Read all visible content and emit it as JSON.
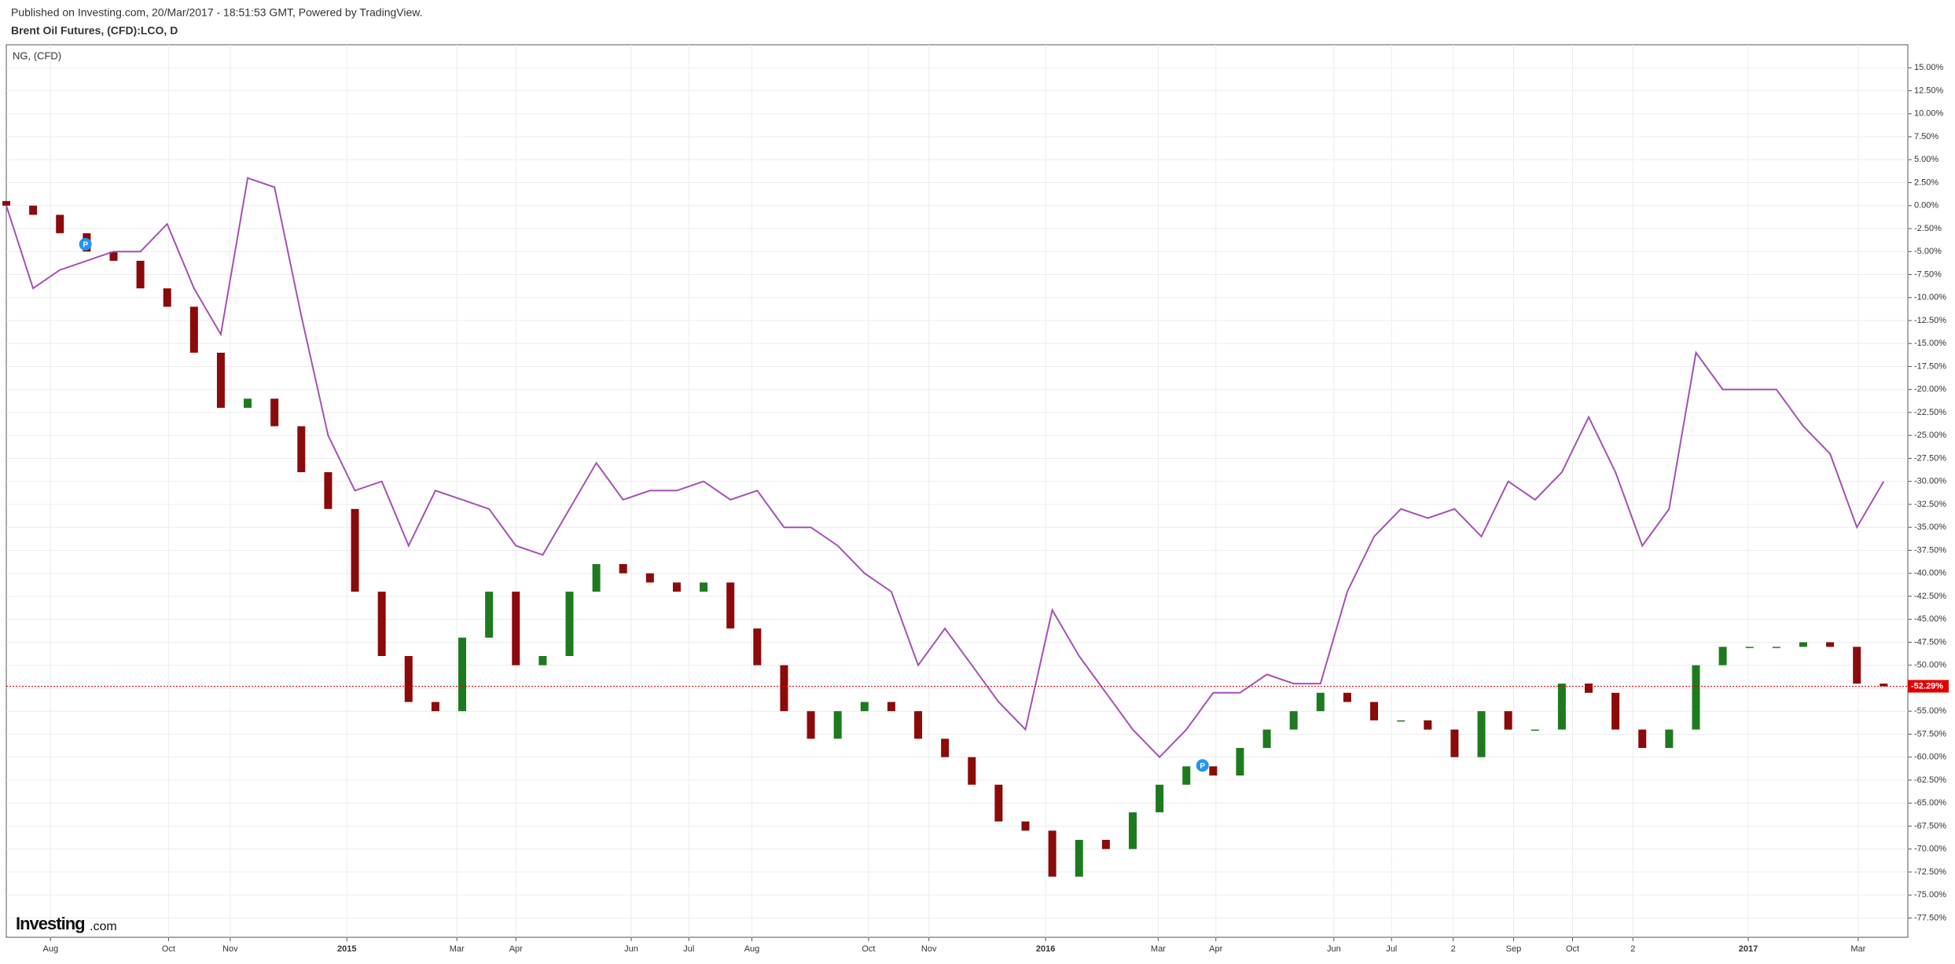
{
  "header": {
    "published": "Published on Investing.com, 20/Mar/2017 - 18:51:53 GMT, Powered by TradingView.",
    "logo": "Investing",
    "logo_suffix": ".com"
  },
  "chart_data": {
    "type": "candlestick",
    "title": "Brent Oil Futures, (CFD):LCO, D",
    "x": [
      0,
      2,
      4,
      6,
      8,
      10,
      12,
      14,
      16,
      18,
      20,
      22,
      24,
      26,
      28,
      30,
      32,
      34,
      36,
      38,
      40,
      42,
      44,
      46,
      48,
      50,
      52,
      54,
      56,
      58,
      60,
      62,
      64,
      66,
      68,
      70,
      72,
      74,
      76,
      78,
      80,
      82,
      84,
      86,
      88,
      90,
      92,
      94,
      96,
      98,
      100,
      102,
      104,
      106,
      108,
      110,
      112,
      114,
      116,
      118,
      120,
      122,
      124,
      126,
      128,
      130,
      132,
      134,
      136,
      138,
      140
    ],
    "series": [
      {
        "name": "Brent Oil Futures, (CFD):LCO, D",
        "up_color": "#1e7a1e",
        "down_color": "#8b0a0a",
        "open": [
          0.5,
          0,
          -1,
          -3,
          -5,
          -6,
          -9,
          -11,
          -16,
          -22,
          -21,
          -24,
          -29,
          -33,
          -42,
          -49,
          -54,
          -55,
          -47,
          -42,
          -50,
          -49,
          -42,
          -39,
          -40,
          -41,
          -42,
          -41,
          -46,
          -50,
          -55,
          -58,
          -55,
          -54,
          -55,
          -58,
          -60,
          -63,
          -67,
          -68,
          -73,
          -69,
          -70,
          -66,
          -63,
          -61,
          -62,
          -59,
          -57,
          -55,
          -53,
          -54,
          -56,
          -56,
          -57,
          -60,
          -55,
          -57,
          -57,
          -52,
          -53,
          -57,
          -59,
          -57,
          -50,
          -48,
          -48,
          -48,
          -47.5,
          -48,
          -52
        ],
        "values": [
          0,
          -1,
          -3,
          -5,
          -6,
          -9,
          -11,
          -16,
          -22,
          -21,
          -24,
          -29,
          -33,
          -42,
          -49,
          -54,
          -55,
          -47,
          -42,
          -50,
          -49,
          -42,
          -39,
          -40,
          -41,
          -42,
          -41,
          -46,
          -50,
          -55,
          -58,
          -55,
          -54,
          -55,
          -58,
          -60,
          -63,
          -67,
          -68,
          -73,
          -69,
          -70,
          -66,
          -63,
          -61,
          -62,
          -59,
          -57,
          -55,
          -53,
          -54,
          -56,
          -56,
          -57,
          -60,
          -55,
          -57,
          -57,
          -52,
          -53,
          -57,
          -59,
          -57,
          -50,
          -48,
          -48,
          -48,
          -47.5,
          -48,
          -52,
          -52.3
        ]
      },
      {
        "name": "NG,  (CFD)",
        "type": "line",
        "color": "#a550b4",
        "values": [
          0,
          -9,
          -7,
          -6,
          -5,
          -5,
          -2,
          -9,
          -14,
          3,
          2,
          -12,
          -25,
          -31,
          -30,
          -37,
          -31,
          -32,
          -33,
          -37,
          -38,
          -33,
          -28,
          -32,
          -31,
          -31,
          -30,
          -32,
          -31,
          -35,
          -35,
          -37,
          -40,
          -42,
          -50,
          -46,
          -50,
          -54,
          -57,
          -44,
          -49,
          -53,
          -57,
          -60,
          -57,
          -53,
          -53,
          -51,
          -52,
          -52,
          -42,
          -36,
          -33,
          -34,
          -33,
          -36,
          -30,
          -32,
          -29,
          -23,
          -29,
          -37,
          -33,
          -16,
          -20,
          -20,
          -20,
          -24,
          -27,
          -35,
          -30
        ]
      }
    ],
    "last_value": -52.29,
    "last_label": "-52.29%",
    "last_color": "#e00000",
    "annotations": [
      {
        "x": 5.9,
        "y": -4.2,
        "label": "P"
      },
      {
        "x": 89.2,
        "y": -60.9,
        "label": "P"
      }
    ],
    "xlim": [
      0,
      141.8
    ],
    "xticks": [
      {
        "value": 3.3,
        "label": "Aug"
      },
      {
        "value": 12.1,
        "label": "Oct"
      },
      {
        "value": 16.7,
        "label": "Nov"
      },
      {
        "value": 25.4,
        "label": "2015"
      },
      {
        "value": 33.6,
        "label": "Mar"
      },
      {
        "value": 38.0,
        "label": "Apr"
      },
      {
        "value": 46.6,
        "label": "Jun"
      },
      {
        "value": 50.9,
        "label": "Jul"
      },
      {
        "value": 55.6,
        "label": "Aug"
      },
      {
        "value": 64.3,
        "label": "Oct"
      },
      {
        "value": 68.8,
        "label": "Nov"
      },
      {
        "value": 77.5,
        "label": "2016"
      },
      {
        "value": 85.9,
        "label": "Mar"
      },
      {
        "value": 90.2,
        "label": "Apr"
      },
      {
        "value": 99.0,
        "label": "Jun"
      },
      {
        "value": 103.3,
        "label": "Jul"
      },
      {
        "value": 107.9,
        "label": "2"
      },
      {
        "value": 112.4,
        "label": "Sep"
      },
      {
        "value": 116.8,
        "label": "Oct"
      },
      {
        "value": 121.3,
        "label": "2"
      },
      {
        "value": 129.9,
        "label": "2017"
      },
      {
        "value": 138.1,
        "label": "Mar"
      }
    ],
    "ylim": [
      -79.6,
      17.5
    ],
    "yticks": [
      {
        "value": 15,
        "label": "15.00%"
      },
      {
        "value": 12.5,
        "label": "12.50%"
      },
      {
        "value": 10,
        "label": "10.00%"
      },
      {
        "value": 7.5,
        "label": "7.50%"
      },
      {
        "value": 5,
        "label": "5.00%"
      },
      {
        "value": 2.5,
        "label": "2.50%"
      },
      {
        "value": 0,
        "label": "0.00%"
      },
      {
        "value": -2.5,
        "label": "-2.50%"
      },
      {
        "value": -5,
        "label": "-5.00%"
      },
      {
        "value": -7.5,
        "label": "-7.50%"
      },
      {
        "value": -10,
        "label": "-10.00%"
      },
      {
        "value": -12.5,
        "label": "-12.50%"
      },
      {
        "value": -15,
        "label": "-15.00%"
      },
      {
        "value": -17.5,
        "label": "-17.50%"
      },
      {
        "value": -20,
        "label": "-20.00%"
      },
      {
        "value": -22.5,
        "label": "-22.50%"
      },
      {
        "value": -25,
        "label": "-25.00%"
      },
      {
        "value": -27.5,
        "label": "-27.50%"
      },
      {
        "value": -30,
        "label": "-30.00%"
      },
      {
        "value": -32.5,
        "label": "-32.50%"
      },
      {
        "value": -35,
        "label": "-35.00%"
      },
      {
        "value": -37.5,
        "label": "-37.50%"
      },
      {
        "value": -40,
        "label": "-40.00%"
      },
      {
        "value": -42.5,
        "label": "-42.50%"
      },
      {
        "value": -45,
        "label": "-45.00%"
      },
      {
        "value": -47.5,
        "label": "-47.50%"
      },
      {
        "value": -50,
        "label": "-50.00%"
      },
      {
        "value": -52.5,
        "label": "-52.50%"
      },
      {
        "value": -55,
        "label": "-55.00%"
      },
      {
        "value": -57.5,
        "label": "-57.50%"
      },
      {
        "value": -60,
        "label": "-60.00%"
      },
      {
        "value": -62.5,
        "label": "-62.50%"
      },
      {
        "value": -65,
        "label": "-65.00%"
      },
      {
        "value": -67.5,
        "label": "-67.50%"
      },
      {
        "value": -70,
        "label": "-70.00%"
      },
      {
        "value": -72.5,
        "label": "-72.50%"
      },
      {
        "value": -75,
        "label": "-75.00%"
      },
      {
        "value": -77.5,
        "label": "-77.50%"
      }
    ],
    "grid": true
  }
}
